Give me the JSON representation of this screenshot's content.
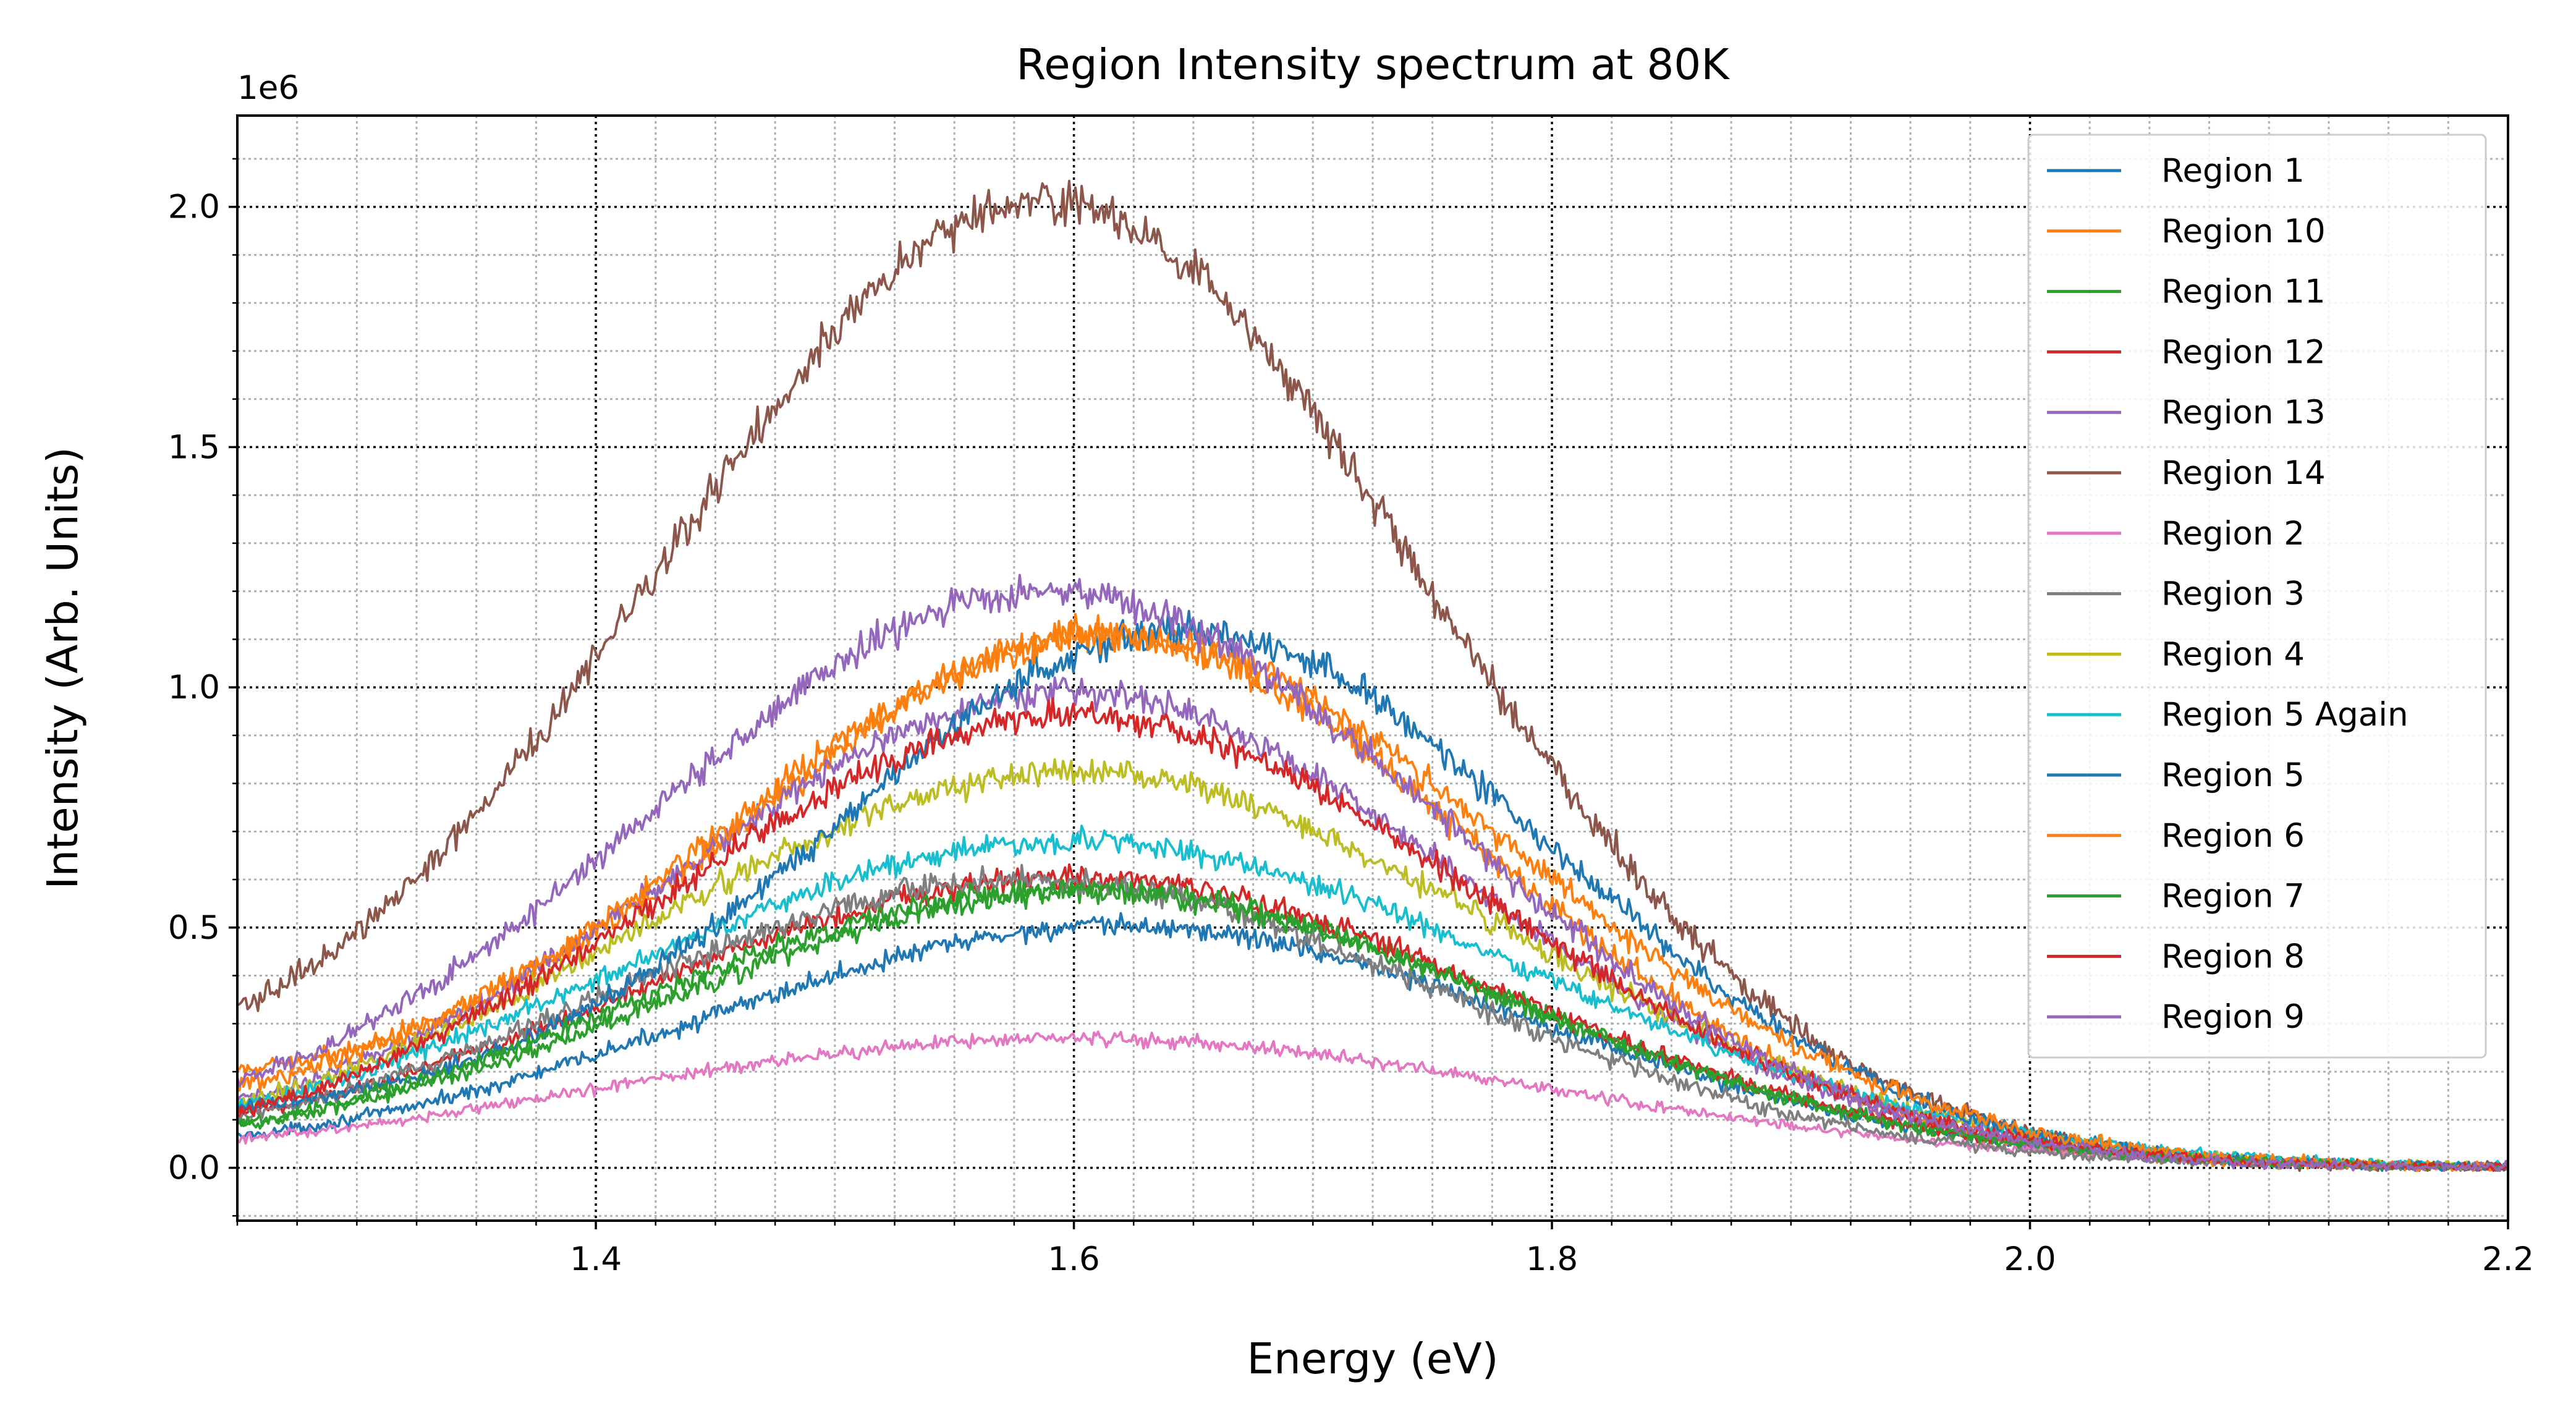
{
  "chart_data": {
    "type": "line",
    "title": "Region Intensity spectrum at 80K",
    "xlabel": "Energy (eV)",
    "ylabel": "Intensity (Arb. Units)",
    "y_offset_label": "1e6",
    "xlim": [
      1.25,
      2.2
    ],
    "ylim": [
      -0.11,
      2.19
    ],
    "y_scale": 1000000,
    "x_ticks": [
      1.4,
      1.6,
      1.8,
      2.0,
      2.2
    ],
    "x_tick_labels": [
      "1.4",
      "1.6",
      "1.8",
      "2.0",
      "2.2"
    ],
    "y_ticks": [
      0.0,
      0.5,
      1.0,
      1.5,
      2.0
    ],
    "y_tick_labels": [
      "0.0",
      "0.5",
      "1.0",
      "1.5",
      "2.0"
    ],
    "grid": "major and minor (dotted)",
    "legend_position": "upper right",
    "series": [
      {
        "name": "Region 1",
        "color": "#1f77b4",
        "peak_x": 1.62,
        "peak_y": 0.5,
        "sigma": 0.175,
        "y_at_start": 0.065,
        "noise": 0.022
      },
      {
        "name": "Region 10",
        "color": "#ff7f0e",
        "peak_x": 1.62,
        "peak_y": 1.07,
        "sigma": 0.155,
        "y_at_start": 0.2,
        "noise": 0.035
      },
      {
        "name": "Region 11",
        "color": "#2ca02c",
        "peak_x": 1.61,
        "peak_y": 0.57,
        "sigma": 0.175,
        "y_at_start": 0.09,
        "noise": 0.025
      },
      {
        "name": "Region 12",
        "color": "#d62728",
        "peak_x": 1.6,
        "peak_y": 0.6,
        "sigma": 0.18,
        "y_at_start": 0.11,
        "noise": 0.025
      },
      {
        "name": "Region 13",
        "color": "#9467bd",
        "peak_x": 1.6,
        "peak_y": 0.98,
        "sigma": 0.165,
        "y_at_start": 0.14,
        "noise": 0.03
      },
      {
        "name": "Region 14",
        "color": "#8c564b",
        "peak_x": 1.59,
        "peak_y": 1.97,
        "sigma": 0.16,
        "y_at_start": 0.33,
        "noise": 0.045
      },
      {
        "name": "Region 2",
        "color": "#e377c2",
        "peak_x": 1.6,
        "peak_y": 0.27,
        "sigma": 0.2,
        "y_at_start": 0.045,
        "noise": 0.015
      },
      {
        "name": "Region 3",
        "color": "#7f7f7f",
        "peak_x": 1.58,
        "peak_y": 0.6,
        "sigma": 0.175,
        "y_at_start": 0.1,
        "noise": 0.025
      },
      {
        "name": "Region 4",
        "color": "#bcbd22",
        "peak_x": 1.6,
        "peak_y": 0.82,
        "sigma": 0.18,
        "y_at_start": 0.13,
        "noise": 0.03
      },
      {
        "name": "Region 5 Again",
        "color": "#17becf",
        "peak_x": 1.6,
        "peak_y": 0.68,
        "sigma": 0.19,
        "y_at_start": 0.12,
        "noise": 0.025
      },
      {
        "name": "Region 5",
        "color": "#1f77b4",
        "peak_x": 1.65,
        "peak_y": 1.1,
        "sigma": 0.15,
        "y_at_start": 0.13,
        "noise": 0.035
      },
      {
        "name": "Region 6",
        "color": "#ff7f0e",
        "peak_x": 1.62,
        "peak_y": 1.09,
        "sigma": 0.165,
        "y_at_start": 0.17,
        "noise": 0.035
      },
      {
        "name": "Region 7",
        "color": "#2ca02c",
        "peak_x": 1.6,
        "peak_y": 0.58,
        "sigma": 0.18,
        "y_at_start": 0.08,
        "noise": 0.025
      },
      {
        "name": "Region 8",
        "color": "#d62728",
        "peak_x": 1.6,
        "peak_y": 0.94,
        "sigma": 0.17,
        "y_at_start": 0.1,
        "noise": 0.03
      },
      {
        "name": "Region 9",
        "color": "#9467bd",
        "peak_x": 1.59,
        "peak_y": 1.19,
        "sigma": 0.165,
        "y_at_start": 0.18,
        "noise": 0.035
      }
    ]
  }
}
